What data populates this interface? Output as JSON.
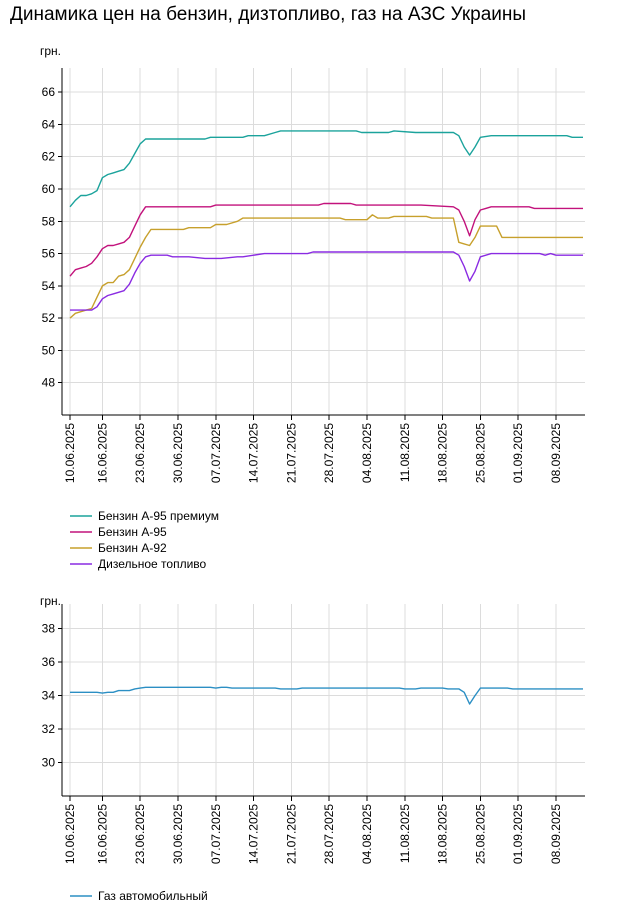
{
  "title": "Динамика цен на бензин, дизтопливо, газ на АЗС Украины",
  "colors": {
    "premium95": "#1ba39c",
    "a95": "#c2127c",
    "a92": "#c7a02c",
    "diesel": "#8a2be2",
    "gas": "#2b8fc4",
    "grid": "#dcdcdc"
  },
  "chart_data": [
    {
      "type": "line",
      "ylabel": "грн.",
      "ylim": [
        46,
        67
      ],
      "yticks": [
        48,
        50,
        52,
        54,
        56,
        58,
        60,
        62,
        64,
        66
      ],
      "xlim": [
        "10.06.2025",
        "13.09.2025"
      ],
      "xticks": [
        "10.06.2025",
        "16.06.2025",
        "23.06.2025",
        "30.06.2025",
        "07.07.2025",
        "14.07.2025",
        "21.07.2025",
        "28.07.2025",
        "04.08.2025",
        "11.08.2025",
        "18.08.2025",
        "25.08.2025",
        "01.09.2025",
        "08.09.2025"
      ],
      "grid": true,
      "legend_position": "bottom-left",
      "series": [
        {
          "name": "Бензин А-95 премиум",
          "color_key": "premium95",
          "points": [
            [
              "10.06.2025",
              58.9
            ],
            [
              "11.06.2025",
              59.3
            ],
            [
              "12.06.2025",
              59.6
            ],
            [
              "13.06.2025",
              59.6
            ],
            [
              "14.06.2025",
              59.7
            ],
            [
              "15.06.2025",
              59.9
            ],
            [
              "16.06.2025",
              60.7
            ],
            [
              "17.06.2025",
              60.9
            ],
            [
              "18.06.2025",
              61.0
            ],
            [
              "19.06.2025",
              61.1
            ],
            [
              "20.06.2025",
              61.2
            ],
            [
              "21.06.2025",
              61.6
            ],
            [
              "22.06.2025",
              62.2
            ],
            [
              "23.06.2025",
              62.8
            ],
            [
              "24.06.2025",
              63.1
            ],
            [
              "26.06.2025",
              63.1
            ],
            [
              "05.07.2025",
              63.1
            ],
            [
              "06.07.2025",
              63.2
            ],
            [
              "12.07.2025",
              63.2
            ],
            [
              "13.07.2025",
              63.3
            ],
            [
              "16.07.2025",
              63.3
            ],
            [
              "18.07.2025",
              63.5
            ],
            [
              "19.07.2025",
              63.6
            ],
            [
              "02.08.2025",
              63.6
            ],
            [
              "03.08.2025",
              63.5
            ],
            [
              "08.08.2025",
              63.5
            ],
            [
              "09.08.2025",
              63.6
            ],
            [
              "13.08.2025",
              63.5
            ],
            [
              "20.08.2025",
              63.5
            ],
            [
              "21.08.2025",
              63.3
            ],
            [
              "22.08.2025",
              62.6
            ],
            [
              "23.08.2025",
              62.1
            ],
            [
              "24.08.2025",
              62.6
            ],
            [
              "25.08.2025",
              63.2
            ],
            [
              "27.08.2025",
              63.3
            ],
            [
              "08.09.2025",
              63.3
            ],
            [
              "09.09.2025",
              63.3
            ],
            [
              "10.09.2025",
              63.3
            ],
            [
              "11.09.2025",
              63.2
            ],
            [
              "13.09.2025",
              63.2
            ]
          ]
        },
        {
          "name": "Бензин А-95",
          "color_key": "a95",
          "points": [
            [
              "10.06.2025",
              54.6
            ],
            [
              "11.06.2025",
              55.0
            ],
            [
              "12.06.2025",
              55.1
            ],
            [
              "13.06.2025",
              55.2
            ],
            [
              "14.06.2025",
              55.4
            ],
            [
              "15.06.2025",
              55.8
            ],
            [
              "16.06.2025",
              56.3
            ],
            [
              "17.06.2025",
              56.5
            ],
            [
              "18.06.2025",
              56.5
            ],
            [
              "19.06.2025",
              56.6
            ],
            [
              "20.06.2025",
              56.7
            ],
            [
              "21.06.2025",
              57.0
            ],
            [
              "22.06.2025",
              57.7
            ],
            [
              "23.06.2025",
              58.4
            ],
            [
              "24.06.2025",
              58.9
            ],
            [
              "06.07.2025",
              58.9
            ],
            [
              "07.07.2025",
              59.0
            ],
            [
              "26.07.2025",
              59.0
            ],
            [
              "27.07.2025",
              59.1
            ],
            [
              "01.08.2025",
              59.1
            ],
            [
              "02.08.2025",
              59.0
            ],
            [
              "13.08.2025",
              59.0
            ],
            [
              "14.08.2025",
              59.0
            ],
            [
              "20.08.2025",
              58.9
            ],
            [
              "21.08.2025",
              58.7
            ],
            [
              "22.08.2025",
              58.0
            ],
            [
              "23.08.2025",
              57.1
            ],
            [
              "24.08.2025",
              58.1
            ],
            [
              "25.08.2025",
              58.7
            ],
            [
              "26.08.2025",
              58.8
            ],
            [
              "27.08.2025",
              58.9
            ],
            [
              "03.09.2025",
              58.9
            ],
            [
              "04.09.2025",
              58.8
            ],
            [
              "13.09.2025",
              58.8
            ]
          ]
        },
        {
          "name": "Бензин А-92",
          "color_key": "a92",
          "points": [
            [
              "10.06.2025",
              52.0
            ],
            [
              "11.06.2025",
              52.3
            ],
            [
              "12.06.2025",
              52.4
            ],
            [
              "13.06.2025",
              52.5
            ],
            [
              "14.06.2025",
              52.6
            ],
            [
              "15.06.2025",
              53.3
            ],
            [
              "16.06.2025",
              54.0
            ],
            [
              "17.06.2025",
              54.2
            ],
            [
              "18.06.2025",
              54.2
            ],
            [
              "19.06.2025",
              54.6
            ],
            [
              "20.06.2025",
              54.7
            ],
            [
              "21.06.2025",
              55.0
            ],
            [
              "22.06.2025",
              55.7
            ],
            [
              "23.06.2025",
              56.4
            ],
            [
              "24.06.2025",
              57.0
            ],
            [
              "25.06.2025",
              57.5
            ],
            [
              "01.07.2025",
              57.5
            ],
            [
              "02.07.2025",
              57.6
            ],
            [
              "06.07.2025",
              57.6
            ],
            [
              "07.07.2025",
              57.8
            ],
            [
              "09.07.2025",
              57.8
            ],
            [
              "11.07.2025",
              58.0
            ],
            [
              "12.07.2025",
              58.2
            ],
            [
              "30.07.2025",
              58.2
            ],
            [
              "31.07.2025",
              58.1
            ],
            [
              "04.08.2025",
              58.1
            ],
            [
              "05.08.2025",
              58.4
            ],
            [
              "06.08.2025",
              58.2
            ],
            [
              "08.08.2025",
              58.2
            ],
            [
              "09.08.2025",
              58.3
            ],
            [
              "15.08.2025",
              58.3
            ],
            [
              "16.08.2025",
              58.2
            ],
            [
              "20.08.2025",
              58.2
            ],
            [
              "21.08.2025",
              56.7
            ],
            [
              "22.08.2025",
              56.6
            ],
            [
              "23.08.2025",
              56.5
            ],
            [
              "24.08.2025",
              57.0
            ],
            [
              "25.08.2025",
              57.7
            ],
            [
              "28.08.2025",
              57.7
            ],
            [
              "29.08.2025",
              57.0
            ],
            [
              "13.09.2025",
              57.0
            ]
          ]
        },
        {
          "name": "Дизельное топливо",
          "color_key": "diesel",
          "points": [
            [
              "10.06.2025",
              52.5
            ],
            [
              "14.06.2025",
              52.5
            ],
            [
              "15.06.2025",
              52.7
            ],
            [
              "16.06.2025",
              53.2
            ],
            [
              "17.06.2025",
              53.4
            ],
            [
              "18.06.2025",
              53.5
            ],
            [
              "19.06.2025",
              53.6
            ],
            [
              "20.06.2025",
              53.7
            ],
            [
              "21.06.2025",
              54.1
            ],
            [
              "22.06.2025",
              54.8
            ],
            [
              "23.06.2025",
              55.4
            ],
            [
              "24.06.2025",
              55.8
            ],
            [
              "25.06.2025",
              55.9
            ],
            [
              "28.06.2025",
              55.9
            ],
            [
              "29.06.2025",
              55.8
            ],
            [
              "01.07.2025",
              55.8
            ],
            [
              "02.07.2025",
              55.8
            ],
            [
              "05.07.2025",
              55.7
            ],
            [
              "06.07.2025",
              55.7
            ],
            [
              "08.07.2025",
              55.7
            ],
            [
              "11.07.2025",
              55.8
            ],
            [
              "12.07.2025",
              55.8
            ],
            [
              "14.07.2025",
              55.9
            ],
            [
              "16.07.2025",
              56.0
            ],
            [
              "24.07.2025",
              56.0
            ],
            [
              "25.07.2025",
              56.1
            ],
            [
              "07.08.2025",
              56.1
            ],
            [
              "08.08.2025",
              56.1
            ],
            [
              "20.08.2025",
              56.1
            ],
            [
              "21.08.2025",
              55.9
            ],
            [
              "22.08.2025",
              55.2
            ],
            [
              "23.08.2025",
              54.3
            ],
            [
              "24.08.2025",
              54.9
            ],
            [
              "25.08.2025",
              55.8
            ],
            [
              "27.08.2025",
              56.0
            ],
            [
              "05.09.2025",
              56.0
            ],
            [
              "06.09.2025",
              55.9
            ],
            [
              "07.09.2025",
              56.0
            ],
            [
              "08.09.2025",
              55.9
            ],
            [
              "13.09.2025",
              55.9
            ]
          ]
        }
      ]
    },
    {
      "type": "line",
      "ylabel": "грн.",
      "ylim": [
        28,
        39
      ],
      "yticks": [
        30,
        32,
        34,
        36,
        38
      ],
      "xlim": [
        "10.06.2025",
        "13.09.2025"
      ],
      "xticks": [
        "10.06.2025",
        "16.06.2025",
        "23.06.2025",
        "30.06.2025",
        "07.07.2025",
        "14.07.2025",
        "21.07.2025",
        "28.07.2025",
        "04.08.2025",
        "11.08.2025",
        "18.08.2025",
        "25.08.2025",
        "01.09.2025",
        "08.09.2025"
      ],
      "grid": true,
      "legend_position": "bottom-left",
      "series": [
        {
          "name": "Газ автомобильный",
          "color_key": "gas",
          "points": [
            [
              "10.06.2025",
              34.2
            ],
            [
              "14.06.2025",
              34.2
            ],
            [
              "15.06.2025",
              34.2
            ],
            [
              "16.06.2025",
              34.15
            ],
            [
              "17.06.2025",
              34.2
            ],
            [
              "18.06.2025",
              34.2
            ],
            [
              "19.06.2025",
              34.3
            ],
            [
              "20.06.2025",
              34.3
            ],
            [
              "21.06.2025",
              34.3
            ],
            [
              "22.06.2025",
              34.4
            ],
            [
              "23.06.2025",
              34.45
            ],
            [
              "24.06.2025",
              34.5
            ],
            [
              "06.07.2025",
              34.5
            ],
            [
              "07.07.2025",
              34.45
            ],
            [
              "08.07.2025",
              34.5
            ],
            [
              "09.07.2025",
              34.5
            ],
            [
              "10.07.2025",
              34.45
            ],
            [
              "18.07.2025",
              34.45
            ],
            [
              "19.07.2025",
              34.4
            ],
            [
              "22.07.2025",
              34.4
            ],
            [
              "23.07.2025",
              34.45
            ],
            [
              "10.08.2025",
              34.45
            ],
            [
              "11.08.2025",
              34.4
            ],
            [
              "13.08.2025",
              34.4
            ],
            [
              "14.08.2025",
              34.45
            ],
            [
              "18.08.2025",
              34.45
            ],
            [
              "19.08.2025",
              34.4
            ],
            [
              "21.08.2025",
              34.4
            ],
            [
              "22.08.2025",
              34.2
            ],
            [
              "23.08.2025",
              33.5
            ],
            [
              "24.08.2025",
              34.0
            ],
            [
              "25.08.2025",
              34.45
            ],
            [
              "30.08.2025",
              34.45
            ],
            [
              "31.08.2025",
              34.4
            ],
            [
              "13.09.2025",
              34.4
            ]
          ]
        }
      ]
    }
  ]
}
